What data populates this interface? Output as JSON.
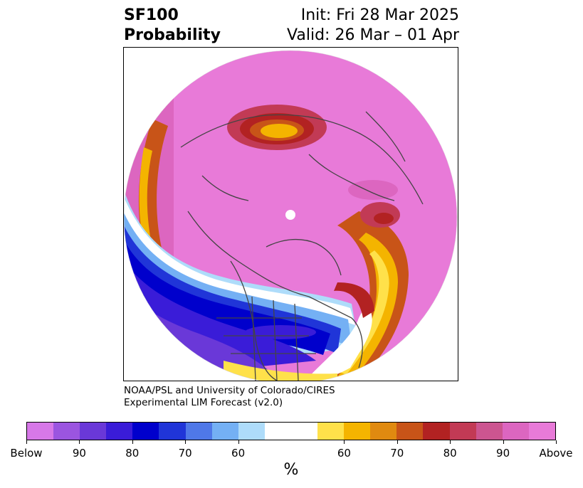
{
  "title": {
    "left_line1": "SF100",
    "left_line2": "Probability",
    "right_line1": "Init: Fri 28 Mar 2025",
    "right_line2": "Valid: 26 Mar – 01 Apr"
  },
  "credit": {
    "line1": "NOAA/PSL and University of Colorado/CIRES",
    "line2": "Experimental LIM Forecast (v2.0)"
  },
  "colorbar": {
    "colors": [
      "#d778e8",
      "#9b55e0",
      "#6a38d8",
      "#3a1cd8",
      "#0000cc",
      "#2035d8",
      "#4f78e8",
      "#74b0f4",
      "#aedcfa",
      "#ffffff",
      "#ffffff",
      "#ffe14a",
      "#f4b400",
      "#e08a10",
      "#c85418",
      "#b22222",
      "#c23a55",
      "#cc5590",
      "#dc66c0",
      "#e87ad8"
    ],
    "labels": [
      "Below",
      "90",
      "80",
      "70",
      "60",
      "60",
      "70",
      "80",
      "90",
      "Above"
    ],
    "units": "%"
  },
  "map": {
    "projection": "north-polar-stereographic",
    "regions": [
      {
        "name": "positive-anomaly-belt-arctic",
        "color": "#e87ad8"
      },
      {
        "name": "negative-anomaly-north-america",
        "color": "#0000cc"
      },
      {
        "name": "positive-anomaly-atlantic",
        "color": "#ffe14a"
      },
      {
        "name": "positive-anomaly-siberia",
        "color": "#f4b400"
      }
    ]
  }
}
